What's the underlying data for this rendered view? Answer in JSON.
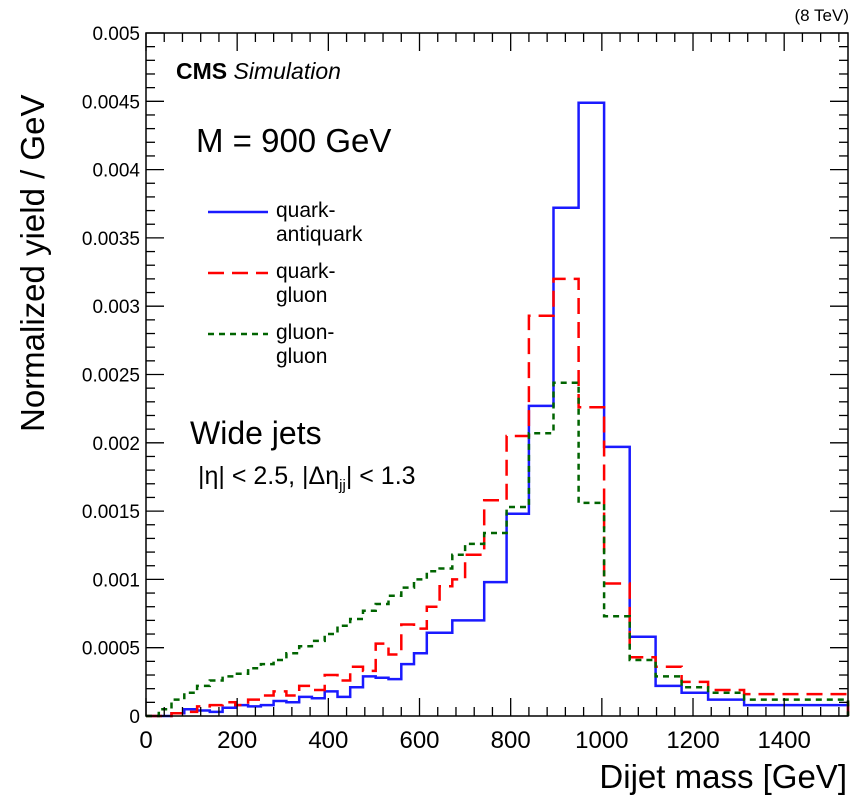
{
  "energy_label": "(8 TeV)",
  "cms_label": "CMS",
  "simulation_label": "Simulation",
  "annotations": {
    "mass": "M = 900 GeV",
    "jets": "Wide jets",
    "cuts": "|η| < 2.5, |Δη",
    "cuts_sub": "jj",
    "cuts_tail": "| < 1.3"
  },
  "colors": {
    "quark_antiquark": "#1a1aff",
    "quark_gluon": "#ff0000",
    "gluon_gluon": "#006400"
  },
  "chart_data": {
    "type": "line",
    "drawstyle": "step histogram",
    "xlabel": "Dijet mass [GeV]",
    "ylabel": "Normalized yield / GeV",
    "xlim": [
      0,
      1540
    ],
    "ylim": [
      0,
      0.005
    ],
    "xticks": [
      "0",
      "200",
      "400",
      "600",
      "800",
      "1000",
      "1200",
      "1400"
    ],
    "yticks": [
      "0",
      "0.0005",
      "0.001",
      "0.0015",
      "0.002",
      "0.0025",
      "0.003",
      "0.0035",
      "0.004",
      "0.0045",
      "0.005"
    ],
    "bin_edges": [
      0,
      28,
      56,
      84,
      112,
      140,
      168,
      196,
      224,
      252,
      280,
      308,
      336,
      364,
      392,
      420,
      448,
      476,
      504,
      532,
      560,
      588,
      616,
      644,
      672,
      700,
      742,
      791,
      840,
      894,
      949,
      1005,
      1061,
      1118,
      1175,
      1233,
      1312,
      1540
    ],
    "series": [
      {
        "name": "quark-antiquark",
        "style": "solid",
        "color": "#1a1aff",
        "values": [
          0,
          0,
          2e-05,
          5e-05,
          4e-05,
          3e-05,
          6e-05,
          8e-05,
          7e-05,
          8e-05,
          0.00011,
          0.0001,
          0.00014,
          0.00013,
          0.00018,
          0.00014,
          0.00021,
          0.00029,
          0.00028,
          0.00027,
          0.00038,
          0.00046,
          0.00061,
          0.00061,
          0.0007,
          0.0007,
          0.00098,
          0.00148,
          0.00227,
          0.00372,
          0.00449,
          0.00197,
          0.00058,
          0.00022,
          0.00017,
          0.00012,
          8e-05,
          0
        ]
      },
      {
        "name": "quark-gluon",
        "style": "dashed",
        "color": "#ff0000",
        "values": [
          0,
          0,
          2e-05,
          3e-05,
          7e-05,
          8e-05,
          0.0001,
          8e-05,
          0.00012,
          0.00015,
          0.00018,
          0.00015,
          0.00022,
          0.00019,
          0.0003,
          0.00026,
          0.00036,
          0.00033,
          0.00053,
          0.00045,
          0.00067,
          0.00064,
          0.0008,
          0.00095,
          0.001,
          0.00118,
          0.00158,
          0.00205,
          0.00293,
          0.0032,
          0.00226,
          0.00097,
          0.00043,
          0.00036,
          0.00025,
          0.00019,
          0.00016,
          0
        ]
      },
      {
        "name": "gluon-gluon",
        "style": "dotted",
        "color": "#006400",
        "values": [
          0,
          5e-05,
          0.00012,
          0.00017,
          0.00022,
          0.00026,
          0.00029,
          0.00031,
          0.00035,
          0.00038,
          0.00041,
          0.00046,
          0.00051,
          0.00055,
          0.0006,
          0.00066,
          0.00071,
          0.00077,
          0.00082,
          0.00088,
          0.00094,
          0.001,
          0.00106,
          0.00108,
          0.00118,
          0.00126,
          0.00134,
          0.00153,
          0.00207,
          0.00244,
          0.00156,
          0.00073,
          0.00041,
          0.00029,
          0.00021,
          0.00017,
          0.00012,
          0
        ]
      }
    ],
    "legend_position": "top-left"
  }
}
